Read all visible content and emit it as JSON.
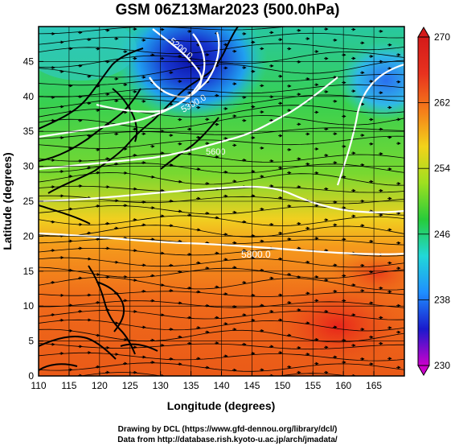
{
  "title": "GSM 06Z13Mar2023 (500.0hPa)",
  "axes": {
    "xlabel": "Longitude (degrees)",
    "ylabel": "Latitude  (degrees)",
    "x_ticks": [
      "110",
      "115",
      "120",
      "125",
      "130",
      "135",
      "140",
      "145",
      "150",
      "155",
      "160",
      "165"
    ],
    "y_ticks": [
      "0",
      "5",
      "10",
      "15",
      "20",
      "25",
      "30",
      "35",
      "40",
      "45"
    ],
    "xlim": [
      110,
      170
    ],
    "ylim": [
      0,
      50
    ]
  },
  "colorbar": {
    "labels": [
      "270",
      "262",
      "254",
      "246",
      "238",
      "230"
    ],
    "range": [
      230,
      270
    ],
    "colors": [
      "#cc00cc",
      "#1a1acc",
      "#1f8fff",
      "#21d8d8",
      "#27cc3a",
      "#9ee020",
      "#f2d21a",
      "#f57c1a",
      "#e8321e",
      "#d41a1a"
    ]
  },
  "contours": [
    {
      "label": "5200.0"
    },
    {
      "label": "5300.0"
    },
    {
      "label": "5600"
    },
    {
      "label": "5800.0"
    }
  ],
  "credits": {
    "line1": "Drawing by DCL (https://www.gfd-dennou.org/library/dcl/)",
    "line2": "Data from http://database.rish.kyoto-u.ac.jp/arch/jmadata/"
  }
}
